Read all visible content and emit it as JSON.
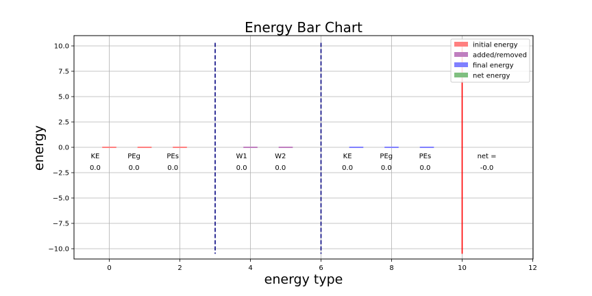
{
  "chart_data": {
    "type": "bar",
    "title": "Energy Bar Chart",
    "xlabel": "energy type",
    "ylabel": "energy",
    "xlim": [
      -1,
      12
    ],
    "ylim": [
      -11,
      11
    ],
    "xticks": [
      "0",
      "2",
      "4",
      "6",
      "8",
      "10",
      "12"
    ],
    "yticks": [
      "10.0",
      "7.5",
      "5.0",
      "2.5",
      "0.0",
      "−2.5",
      "−5.0",
      "−7.5",
      "−10.0"
    ],
    "grid": true,
    "legend_position": "top-right",
    "legend": [
      {
        "name": "initial energy",
        "color": "#ff8080"
      },
      {
        "name": "added/removed",
        "color": "#bf7fbf"
      },
      {
        "name": "final energy",
        "color": "#8080ff"
      },
      {
        "name": "net energy",
        "color": "#80bf80"
      }
    ],
    "bars": [
      {
        "x": 0,
        "value": 0.0,
        "group": "initial energy"
      },
      {
        "x": 1,
        "value": 0.0,
        "group": "initial energy"
      },
      {
        "x": 2,
        "value": 0.0,
        "group": "initial energy"
      },
      {
        "x": 4,
        "value": 0.0,
        "group": "added/removed"
      },
      {
        "x": 5,
        "value": 0.0,
        "group": "added/removed"
      },
      {
        "x": 7,
        "value": 0.0,
        "group": "final energy"
      },
      {
        "x": 8,
        "value": 0.0,
        "group": "final energy"
      },
      {
        "x": 9,
        "value": 0.0,
        "group": "final energy"
      }
    ],
    "bar_labels": [
      {
        "x": -0.4,
        "name": "KE",
        "value": "0.0"
      },
      {
        "x": 0.7,
        "name": "PEg",
        "value": "0.0"
      },
      {
        "x": 1.8,
        "name": "PEs",
        "value": "0.0"
      },
      {
        "x": 3.75,
        "name": "W1",
        "value": "0.0"
      },
      {
        "x": 4.85,
        "name": "W2",
        "value": "0.0"
      },
      {
        "x": 6.75,
        "name": "KE",
        "value": "0.0"
      },
      {
        "x": 7.85,
        "name": "PEg",
        "value": "0.0"
      },
      {
        "x": 8.95,
        "name": "PEs",
        "value": "0.0"
      },
      {
        "x": 10.7,
        "name": "net =",
        "value": "-0.0"
      }
    ],
    "dividers": [
      {
        "x": 3,
        "style": "dashed",
        "color": "#00007f"
      },
      {
        "x": 6,
        "style": "dashed",
        "color": "#00007f"
      },
      {
        "x": 10,
        "style": "solid",
        "color": "#ff0000"
      }
    ]
  }
}
